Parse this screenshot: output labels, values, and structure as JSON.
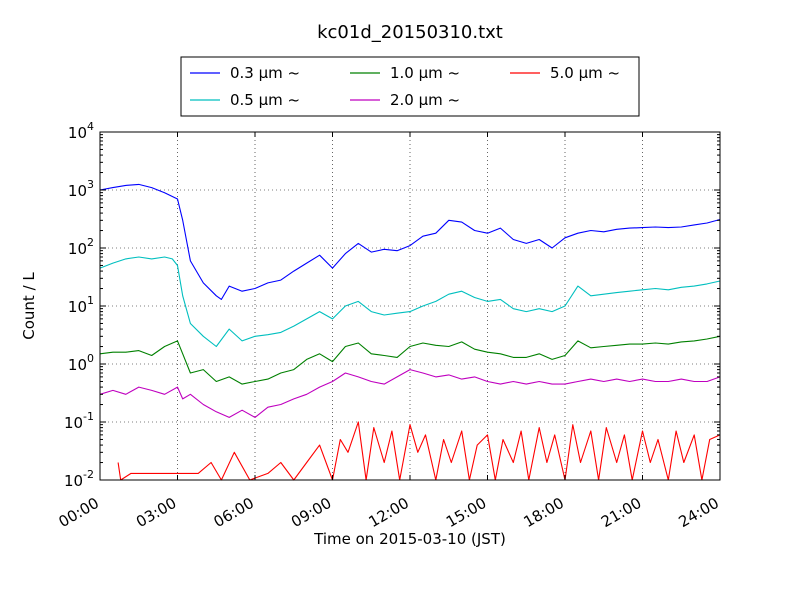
{
  "chart_data": {
    "type": "line",
    "title": "kc01d_20150310.txt",
    "xlabel": "Time on 2015-03-10 (JST)",
    "ylabel": "Count / L",
    "x_unit": "hours",
    "xlim": [
      0,
      24
    ],
    "ylim": [
      0.01,
      10000
    ],
    "yscale": "log",
    "grid": true,
    "legend_position": "top-center",
    "x_ticks": [
      {
        "value": 0,
        "label": "00:00"
      },
      {
        "value": 3,
        "label": "03:00"
      },
      {
        "value": 6,
        "label": "06:00"
      },
      {
        "value": 9,
        "label": "09:00"
      },
      {
        "value": 12,
        "label": "12:00"
      },
      {
        "value": 15,
        "label": "15:00"
      },
      {
        "value": 18,
        "label": "18:00"
      },
      {
        "value": 21,
        "label": "21:00"
      },
      {
        "value": 24,
        "label": "24:00"
      }
    ],
    "y_ticks": [
      {
        "value": 0.01,
        "base": "10",
        "exp": "-2"
      },
      {
        "value": 0.1,
        "base": "10",
        "exp": "-1"
      },
      {
        "value": 1,
        "base": "10",
        "exp": "0"
      },
      {
        "value": 10,
        "base": "10",
        "exp": "1"
      },
      {
        "value": 100,
        "base": "10",
        "exp": "2"
      },
      {
        "value": 1000,
        "base": "10",
        "exp": "3"
      },
      {
        "value": 10000,
        "base": "10",
        "exp": "4"
      }
    ],
    "series": [
      {
        "name": "0.3 μm ~",
        "color": "#0000ff",
        "points": [
          [
            0,
            1000
          ],
          [
            0.5,
            1100
          ],
          [
            1,
            1200
          ],
          [
            1.5,
            1250
          ],
          [
            2,
            1100
          ],
          [
            2.5,
            900
          ],
          [
            3,
            700
          ],
          [
            3.2,
            300
          ],
          [
            3.5,
            60
          ],
          [
            4,
            25
          ],
          [
            4.5,
            15
          ],
          [
            4.7,
            13
          ],
          [
            5,
            22
          ],
          [
            5.5,
            18
          ],
          [
            6,
            20
          ],
          [
            6.5,
            25
          ],
          [
            7,
            28
          ],
          [
            7.5,
            40
          ],
          [
            8,
            55
          ],
          [
            8.5,
            75
          ],
          [
            9,
            45
          ],
          [
            9.5,
            80
          ],
          [
            10,
            120
          ],
          [
            10.5,
            85
          ],
          [
            11,
            95
          ],
          [
            11.5,
            90
          ],
          [
            12,
            110
          ],
          [
            12.5,
            160
          ],
          [
            13,
            180
          ],
          [
            13.5,
            300
          ],
          [
            14,
            280
          ],
          [
            14.5,
            200
          ],
          [
            15,
            180
          ],
          [
            15.5,
            220
          ],
          [
            16,
            140
          ],
          [
            16.5,
            120
          ],
          [
            17,
            140
          ],
          [
            17.5,
            100
          ],
          [
            18,
            150
          ],
          [
            18.5,
            180
          ],
          [
            19,
            200
          ],
          [
            19.5,
            190
          ],
          [
            20,
            210
          ],
          [
            20.5,
            220
          ],
          [
            21,
            225
          ],
          [
            21.5,
            230
          ],
          [
            22,
            225
          ],
          [
            22.5,
            230
          ],
          [
            23,
            250
          ],
          [
            23.5,
            270
          ],
          [
            24,
            310
          ]
        ]
      },
      {
        "name": "0.5 μm ~",
        "color": "#00bfbf",
        "points": [
          [
            0,
            45
          ],
          [
            0.5,
            55
          ],
          [
            1,
            65
          ],
          [
            1.5,
            70
          ],
          [
            2,
            65
          ],
          [
            2.5,
            70
          ],
          [
            2.8,
            65
          ],
          [
            3,
            50
          ],
          [
            3.2,
            15
          ],
          [
            3.5,
            5
          ],
          [
            4,
            3
          ],
          [
            4.5,
            2
          ],
          [
            5,
            4
          ],
          [
            5.5,
            2.5
          ],
          [
            6,
            3
          ],
          [
            6.5,
            3.2
          ],
          [
            7,
            3.5
          ],
          [
            7.5,
            4.5
          ],
          [
            8,
            6
          ],
          [
            8.5,
            8
          ],
          [
            9,
            6
          ],
          [
            9.5,
            10
          ],
          [
            10,
            12
          ],
          [
            10.5,
            8
          ],
          [
            11,
            7
          ],
          [
            11.5,
            7.5
          ],
          [
            12,
            8
          ],
          [
            12.5,
            10
          ],
          [
            13,
            12
          ],
          [
            13.5,
            16
          ],
          [
            14,
            18
          ],
          [
            14.5,
            14
          ],
          [
            15,
            12
          ],
          [
            15.5,
            13
          ],
          [
            16,
            9
          ],
          [
            16.5,
            8
          ],
          [
            17,
            9
          ],
          [
            17.5,
            8
          ],
          [
            18,
            10
          ],
          [
            18.5,
            22
          ],
          [
            19,
            15
          ],
          [
            19.5,
            16
          ],
          [
            20,
            17
          ],
          [
            20.5,
            18
          ],
          [
            21,
            19
          ],
          [
            21.5,
            20
          ],
          [
            22,
            19
          ],
          [
            22.5,
            21
          ],
          [
            23,
            22
          ],
          [
            23.5,
            24
          ],
          [
            24,
            27
          ]
        ]
      },
      {
        "name": "1.0 μm ~",
        "color": "#008000",
        "points": [
          [
            0,
            1.5
          ],
          [
            0.5,
            1.6
          ],
          [
            1,
            1.6
          ],
          [
            1.5,
            1.7
          ],
          [
            2,
            1.4
          ],
          [
            2.5,
            2
          ],
          [
            3,
            2.5
          ],
          [
            3.2,
            1.5
          ],
          [
            3.5,
            0.7
          ],
          [
            4,
            0.8
          ],
          [
            4.5,
            0.5
          ],
          [
            5,
            0.6
          ],
          [
            5.5,
            0.45
          ],
          [
            6,
            0.5
          ],
          [
            6.5,
            0.55
          ],
          [
            7,
            0.7
          ],
          [
            7.5,
            0.8
          ],
          [
            8,
            1.2
          ],
          [
            8.5,
            1.5
          ],
          [
            9,
            1.1
          ],
          [
            9.5,
            2
          ],
          [
            10,
            2.3
          ],
          [
            10.5,
            1.5
          ],
          [
            11,
            1.4
          ],
          [
            11.5,
            1.3
          ],
          [
            12,
            2
          ],
          [
            12.5,
            2.3
          ],
          [
            13,
            2.1
          ],
          [
            13.5,
            2
          ],
          [
            14,
            2.4
          ],
          [
            14.5,
            1.8
          ],
          [
            15,
            1.6
          ],
          [
            15.5,
            1.5
          ],
          [
            16,
            1.3
          ],
          [
            16.5,
            1.3
          ],
          [
            17,
            1.5
          ],
          [
            17.5,
            1.2
          ],
          [
            18,
            1.4
          ],
          [
            18.5,
            2.5
          ],
          [
            19,
            1.9
          ],
          [
            19.5,
            2
          ],
          [
            20,
            2.1
          ],
          [
            20.5,
            2.2
          ],
          [
            21,
            2.2
          ],
          [
            21.5,
            2.3
          ],
          [
            22,
            2.2
          ],
          [
            22.5,
            2.4
          ],
          [
            23,
            2.5
          ],
          [
            23.5,
            2.7
          ],
          [
            24,
            3
          ]
        ]
      },
      {
        "name": "2.0 μm ~",
        "color": "#bf00bf",
        "points": [
          [
            0,
            0.3
          ],
          [
            0.5,
            0.35
          ],
          [
            1,
            0.3
          ],
          [
            1.5,
            0.4
          ],
          [
            2,
            0.35
          ],
          [
            2.5,
            0.3
          ],
          [
            3,
            0.4
          ],
          [
            3.2,
            0.25
          ],
          [
            3.5,
            0.3
          ],
          [
            4,
            0.2
          ],
          [
            4.5,
            0.15
          ],
          [
            5,
            0.12
          ],
          [
            5.5,
            0.16
          ],
          [
            6,
            0.12
          ],
          [
            6.5,
            0.18
          ],
          [
            7,
            0.2
          ],
          [
            7.5,
            0.25
          ],
          [
            8,
            0.3
          ],
          [
            8.5,
            0.4
          ],
          [
            9,
            0.5
          ],
          [
            9.5,
            0.7
          ],
          [
            10,
            0.6
          ],
          [
            10.5,
            0.5
          ],
          [
            11,
            0.45
          ],
          [
            11.5,
            0.6
          ],
          [
            12,
            0.8
          ],
          [
            12.5,
            0.7
          ],
          [
            13,
            0.6
          ],
          [
            13.5,
            0.65
          ],
          [
            14,
            0.55
          ],
          [
            14.5,
            0.6
          ],
          [
            15,
            0.5
          ],
          [
            15.5,
            0.45
          ],
          [
            16,
            0.5
          ],
          [
            16.5,
            0.45
          ],
          [
            17,
            0.5
          ],
          [
            17.5,
            0.45
          ],
          [
            18,
            0.45
          ],
          [
            18.5,
            0.5
          ],
          [
            19,
            0.55
          ],
          [
            19.5,
            0.5
          ],
          [
            20,
            0.55
          ],
          [
            20.5,
            0.5
          ],
          [
            21,
            0.55
          ],
          [
            21.5,
            0.5
          ],
          [
            22,
            0.5
          ],
          [
            22.5,
            0.55
          ],
          [
            23,
            0.5
          ],
          [
            23.5,
            0.5
          ],
          [
            24,
            0.6
          ]
        ]
      },
      {
        "name": "5.0 μm ~",
        "color": "#ff0000",
        "points": [
          [
            0.7,
            0.02
          ],
          [
            0.8,
            0.01
          ],
          [
            1.2,
            0.013
          ],
          [
            2,
            0.013
          ],
          [
            3,
            0.013
          ],
          [
            3.8,
            0.013
          ],
          [
            4.3,
            0.02
          ],
          [
            4.7,
            0.01
          ],
          [
            5.2,
            0.03
          ],
          [
            5.8,
            0.01
          ],
          [
            6.5,
            0.013
          ],
          [
            7,
            0.02
          ],
          [
            7.5,
            0.01
          ],
          [
            8,
            0.02
          ],
          [
            8.5,
            0.04
          ],
          [
            9,
            0.01
          ],
          [
            9.3,
            0.05
          ],
          [
            9.6,
            0.03
          ],
          [
            10,
            0.1
          ],
          [
            10.3,
            0.01
          ],
          [
            10.6,
            0.08
          ],
          [
            11,
            0.02
          ],
          [
            11.3,
            0.07
          ],
          [
            11.6,
            0.01
          ],
          [
            12,
            0.09
          ],
          [
            12.3,
            0.03
          ],
          [
            12.6,
            0.06
          ],
          [
            13,
            0.01
          ],
          [
            13.3,
            0.05
          ],
          [
            13.6,
            0.02
          ],
          [
            14,
            0.07
          ],
          [
            14.3,
            0.01
          ],
          [
            14.6,
            0.04
          ],
          [
            15,
            0.06
          ],
          [
            15.3,
            0.01
          ],
          [
            15.6,
            0.05
          ],
          [
            16,
            0.02
          ],
          [
            16.3,
            0.07
          ],
          [
            16.6,
            0.01
          ],
          [
            17,
            0.08
          ],
          [
            17.3,
            0.02
          ],
          [
            17.6,
            0.06
          ],
          [
            18,
            0.01
          ],
          [
            18.3,
            0.09
          ],
          [
            18.6,
            0.02
          ],
          [
            19,
            0.07
          ],
          [
            19.3,
            0.01
          ],
          [
            19.6,
            0.08
          ],
          [
            20,
            0.02
          ],
          [
            20.3,
            0.06
          ],
          [
            20.6,
            0.01
          ],
          [
            21,
            0.07
          ],
          [
            21.3,
            0.02
          ],
          [
            21.6,
            0.05
          ],
          [
            22,
            0.01
          ],
          [
            22.3,
            0.07
          ],
          [
            22.6,
            0.02
          ],
          [
            23,
            0.06
          ],
          [
            23.3,
            0.01
          ],
          [
            23.6,
            0.05
          ],
          [
            24,
            0.06
          ]
        ]
      }
    ]
  }
}
